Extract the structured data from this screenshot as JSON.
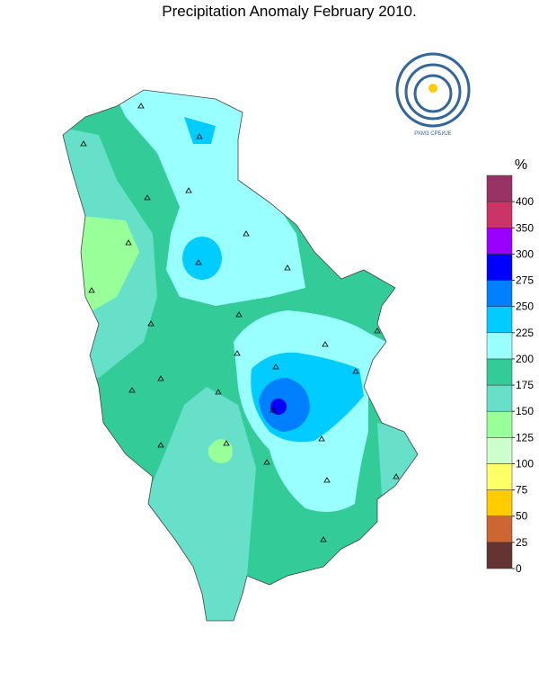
{
  "title": "Precipitation Anomaly February 2010.",
  "logo_text": "РХМЗ СРБИЈЕ",
  "legend": {
    "unit": "%",
    "ticks": [
      0,
      25,
      50,
      75,
      100,
      125,
      150,
      175,
      200,
      225,
      250,
      275,
      300,
      350,
      400
    ],
    "colors": [
      "#663333",
      "#cc6633",
      "#ffcc00",
      "#ffff66",
      "#ccffcc",
      "#99ff99",
      "#66e0c8",
      "#33cc99",
      "#99ffff",
      "#00ccff",
      "#0080ff",
      "#0000ff",
      "#9900ff",
      "#cc3366",
      "#993366"
    ]
  }
}
